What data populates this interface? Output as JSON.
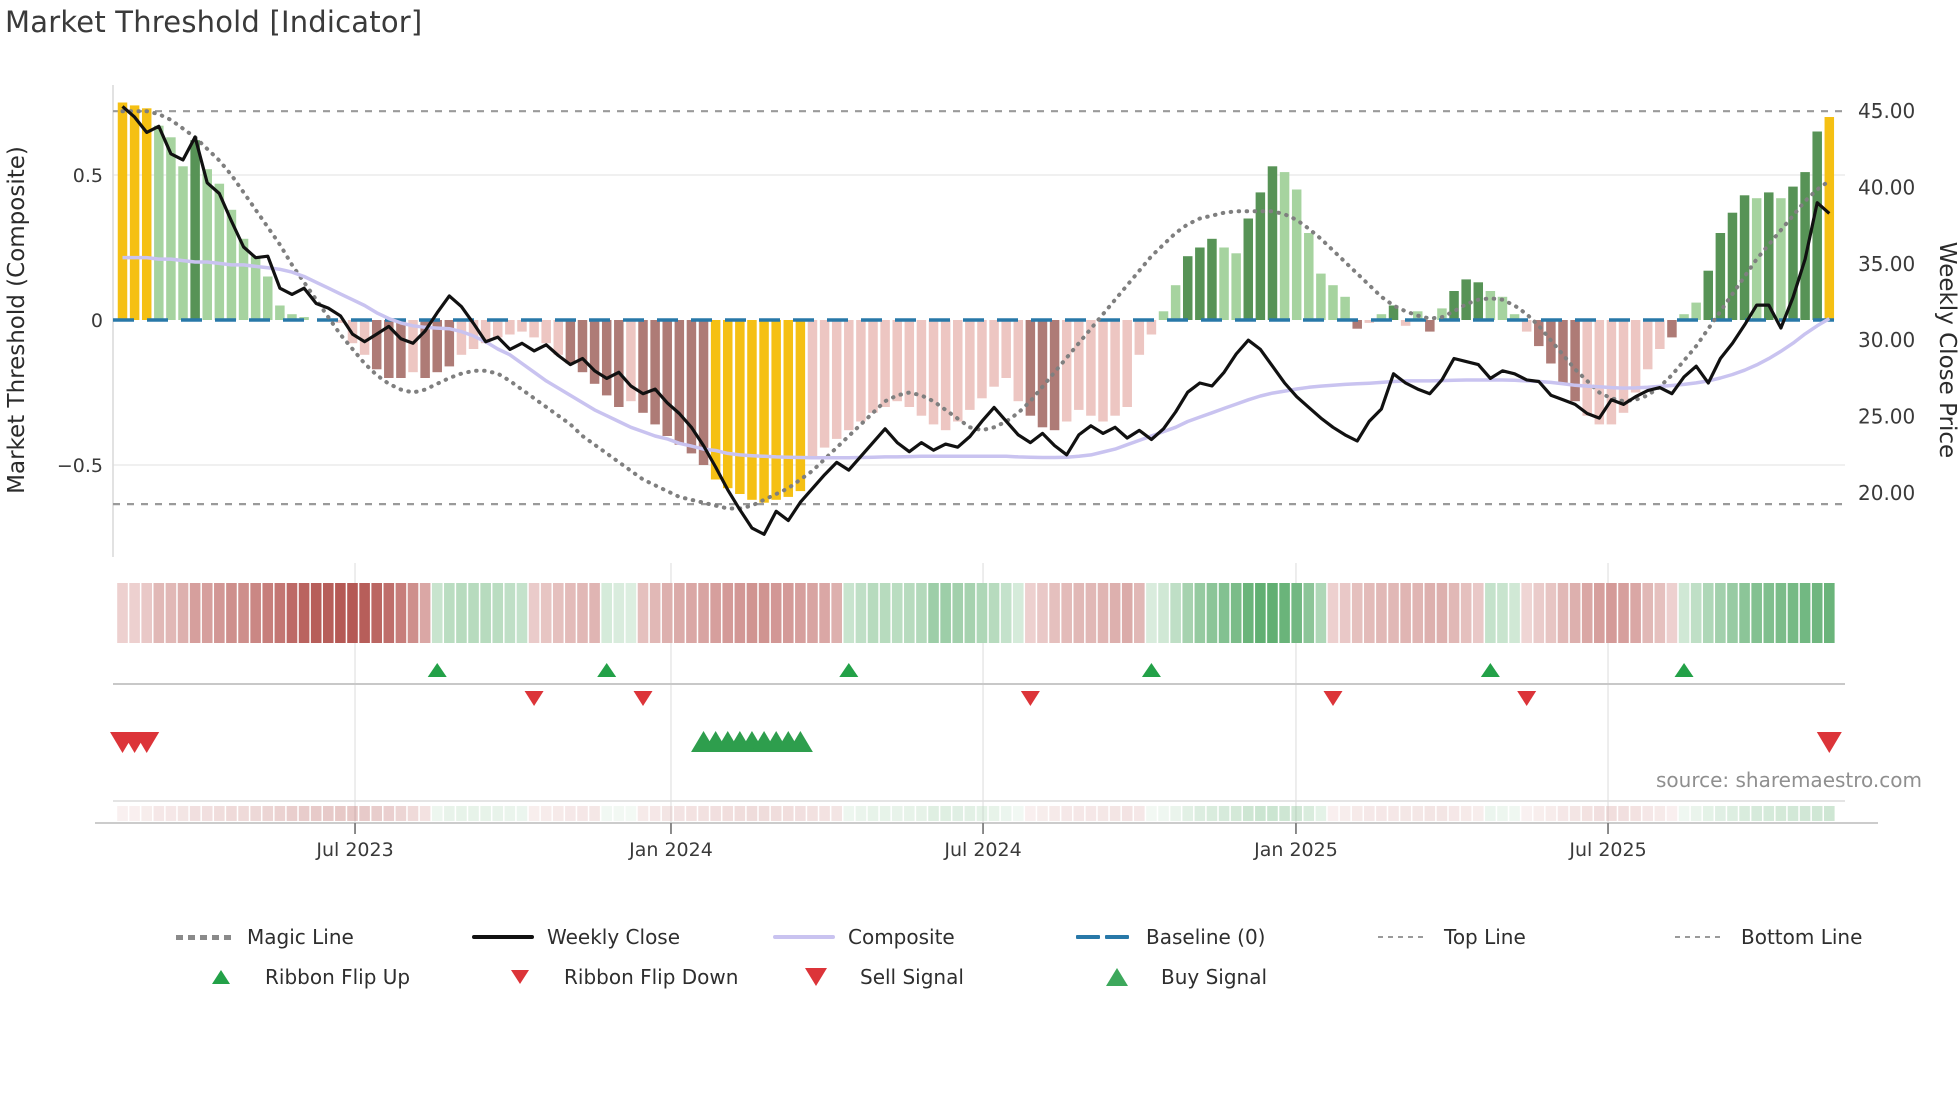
{
  "title": "Market Threshold [Indicator]",
  "source": {
    "text": "source: sharemaestro.com"
  },
  "axes": {
    "left_title": "Market Threshold (Composite)",
    "right_title": "Weekly Close Price",
    "left_ticks": [
      {
        "label": "0.5",
        "value": 0.5
      },
      {
        "label": "0",
        "value": 0
      },
      {
        "label": "−0.5",
        "value": -0.5
      }
    ],
    "right_ticks": [
      {
        "label": "45.00",
        "value": 45
      },
      {
        "label": "40.00",
        "value": 40
      },
      {
        "label": "35.00",
        "value": 35
      },
      {
        "label": "30.00",
        "value": 30
      },
      {
        "label": "25.00",
        "value": 25
      },
      {
        "label": "20.00",
        "value": 20
      }
    ],
    "x_ticks": [
      {
        "label": "Jul 2023",
        "week": 19.21
      },
      {
        "label": "Jan 2024",
        "week": 45.31
      },
      {
        "label": "Jul 2024",
        "week": 71.09
      },
      {
        "label": "Jan 2025",
        "week": 96.94
      },
      {
        "label": "Jul 2025",
        "week": 122.72
      }
    ]
  },
  "chart_data": {
    "type": "bar",
    "title": "Market Threshold [Indicator]",
    "xlabel": "",
    "ylabel_left": "Market Threshold (Composite)",
    "ylabel_right": "Weekly Close Price",
    "ylim_left": [
      -0.78,
      0.82
    ],
    "ylim_right": [
      16.5,
      46.5
    ],
    "x_range_weeks": 142,
    "grid": "horizontal at 0.5, 0, -0.5; faint verticals at half-year ticks",
    "reference_lines": {
      "baseline": 0,
      "top_line": 0.72,
      "bottom_line": -0.635
    },
    "bar_values": [
      0.75,
      0.74,
      0.73,
      0.67,
      0.63,
      0.53,
      0.62,
      0.52,
      0.47,
      0.38,
      0.28,
      0.22,
      0.15,
      0.05,
      0.02,
      0.01,
      0,
      0,
      -0.01,
      -0.08,
      -0.12,
      -0.17,
      -0.2,
      -0.2,
      -0.18,
      -0.2,
      -0.18,
      -0.16,
      -0.12,
      -0.1,
      -0.08,
      -0.06,
      -0.05,
      -0.04,
      -0.06,
      -0.08,
      -0.12,
      -0.15,
      -0.18,
      -0.22,
      -0.26,
      -0.3,
      -0.28,
      -0.32,
      -0.36,
      -0.4,
      -0.43,
      -0.46,
      -0.5,
      -0.55,
      -0.58,
      -0.6,
      -0.62,
      -0.63,
      -0.62,
      -0.61,
      -0.59,
      -0.48,
      -0.44,
      -0.41,
      -0.38,
      -0.35,
      -0.32,
      -0.3,
      -0.28,
      -0.3,
      -0.33,
      -0.36,
      -0.38,
      -0.35,
      -0.31,
      -0.27,
      -0.23,
      -0.2,
      -0.28,
      -0.33,
      -0.37,
      -0.38,
      -0.35,
      -0.31,
      -0.33,
      -0.35,
      -0.33,
      -0.3,
      -0.12,
      -0.05,
      0.03,
      0.12,
      0.22,
      0.25,
      0.28,
      0.25,
      0.23,
      0.35,
      0.44,
      0.53,
      0.51,
      0.45,
      0.3,
      0.16,
      0.12,
      0.08,
      -0.03,
      -0.01,
      0.02,
      0.05,
      -0.02,
      0.03,
      -0.04,
      0.04,
      0.1,
      0.14,
      0.13,
      0.1,
      0.08,
      0.02,
      -0.04,
      -0.09,
      -0.15,
      -0.22,
      -0.28,
      -0.33,
      -0.36,
      -0.36,
      -0.32,
      -0.25,
      -0.17,
      -0.1,
      -0.06,
      0.02,
      0.06,
      0.17,
      0.3,
      0.37,
      0.43,
      0.42,
      0.44,
      0.42,
      0.46,
      0.51,
      0.65,
      0.7
    ],
    "bar_colors": [
      "Y",
      "Y",
      "Y",
      "G",
      "G",
      "G",
      "D",
      "G",
      "G",
      "G",
      "G",
      "G",
      "G",
      "G",
      "G",
      "G",
      "G",
      "G",
      "P",
      "P",
      "P",
      "R",
      "R",
      "R",
      "P",
      "R",
      "R",
      "R",
      "P",
      "P",
      "P",
      "P",
      "P",
      "P",
      "P",
      "P",
      "P",
      "R",
      "R",
      "R",
      "R",
      "R",
      "P",
      "R",
      "R",
      "R",
      "R",
      "R",
      "R",
      "Y",
      "Y",
      "Y",
      "Y",
      "Y",
      "Y",
      "Y",
      "Y",
      "P",
      "P",
      "P",
      "P",
      "P",
      "P",
      "P",
      "P",
      "P",
      "P",
      "P",
      "P",
      "P",
      "P",
      "P",
      "P",
      "P",
      "P",
      "R",
      "R",
      "R",
      "P",
      "P",
      "P",
      "P",
      "P",
      "P",
      "P",
      "P",
      "G",
      "G",
      "D",
      "D",
      "D",
      "G",
      "G",
      "D",
      "D",
      "D",
      "G",
      "G",
      "G",
      "G",
      "G",
      "G",
      "R",
      "P",
      "G",
      "D",
      "P",
      "G",
      "R",
      "G",
      "D",
      "D",
      "D",
      "G",
      "G",
      "G",
      "P",
      "R",
      "R",
      "R",
      "R",
      "P",
      "P",
      "P",
      "P",
      "P",
      "P",
      "P",
      "R",
      "G",
      "G",
      "D",
      "D",
      "D",
      "D",
      "G",
      "D",
      "G",
      "D",
      "D",
      "D",
      "Y"
    ],
    "weekly_close": [
      45.3,
      44.6,
      43.6,
      44.0,
      42.2,
      41.8,
      43.3,
      40.3,
      39.6,
      37.8,
      36.1,
      35.4,
      35.5,
      33.4,
      33.0,
      33.4,
      32.4,
      32.1,
      31.6,
      30.4,
      29.9,
      30.4,
      30.9,
      30.1,
      29.8,
      30.6,
      31.8,
      32.9,
      32.2,
      31.1,
      29.9,
      30.2,
      29.4,
      29.8,
      29.3,
      29.7,
      29.0,
      28.4,
      28.8,
      28.0,
      27.5,
      27.9,
      27.0,
      26.5,
      26.8,
      25.9,
      25.2,
      24.3,
      23.1,
      21.7,
      20.2,
      18.9,
      17.7,
      17.3,
      18.8,
      18.2,
      19.4,
      20.3,
      21.2,
      22.0,
      21.5,
      22.4,
      23.3,
      24.2,
      23.3,
      22.7,
      23.3,
      22.8,
      23.2,
      23.0,
      23.7,
      24.7,
      25.6,
      24.7,
      23.8,
      23.3,
      23.9,
      23.1,
      22.5,
      23.8,
      24.4,
      23.9,
      24.3,
      23.6,
      24.1,
      23.5,
      24.2,
      25.3,
      26.6,
      27.2,
      27.0,
      27.9,
      29.1,
      30.0,
      29.4,
      28.3,
      27.2,
      26.3,
      25.6,
      24.9,
      24.3,
      23.8,
      23.4,
      24.7,
      25.5,
      27.8,
      27.2,
      26.8,
      26.5,
      27.4,
      28.8,
      28.6,
      28.4,
      27.5,
      28.0,
      27.8,
      27.4,
      27.3,
      26.4,
      26.1,
      25.8,
      25.2,
      24.9,
      26.1,
      25.8,
      26.3,
      26.7,
      26.9,
      26.5,
      27.6,
      28.3,
      27.2,
      28.8,
      29.8,
      31.0,
      32.3,
      32.3,
      30.8,
      32.8,
      35.3,
      39.0,
      38.3
    ],
    "composite_line": [
      0.215,
      0.215,
      0.215,
      0.21,
      0.21,
      0.205,
      0.2,
      0.2,
      0.195,
      0.19,
      0.19,
      0.185,
      0.18,
      0.175,
      0.165,
      0.15,
      0.13,
      0.11,
      0.09,
      0.07,
      0.05,
      0.025,
      0.005,
      -0.01,
      -0.02,
      -0.025,
      -0.028,
      -0.03,
      -0.04,
      -0.055,
      -0.075,
      -0.1,
      -0.12,
      -0.15,
      -0.18,
      -0.21,
      -0.235,
      -0.26,
      -0.285,
      -0.31,
      -0.33,
      -0.35,
      -0.37,
      -0.385,
      -0.4,
      -0.41,
      -0.425,
      -0.435,
      -0.445,
      -0.45,
      -0.46,
      -0.465,
      -0.468,
      -0.47,
      -0.472,
      -0.473,
      -0.474,
      -0.475,
      -0.475,
      -0.475,
      -0.475,
      -0.474,
      -0.473,
      -0.472,
      -0.472,
      -0.471,
      -0.47,
      -0.47,
      -0.47,
      -0.47,
      -0.47,
      -0.47,
      -0.47,
      -0.47,
      -0.472,
      -0.473,
      -0.474,
      -0.474,
      -0.473,
      -0.47,
      -0.465,
      -0.455,
      -0.445,
      -0.43,
      -0.415,
      -0.4,
      -0.385,
      -0.37,
      -0.35,
      -0.335,
      -0.32,
      -0.305,
      -0.29,
      -0.275,
      -0.262,
      -0.252,
      -0.245,
      -0.238,
      -0.232,
      -0.228,
      -0.225,
      -0.222,
      -0.22,
      -0.218,
      -0.215,
      -0.212,
      -0.21,
      -0.21,
      -0.21,
      -0.209,
      -0.208,
      -0.207,
      -0.207,
      -0.207,
      -0.207,
      -0.208,
      -0.21,
      -0.212,
      -0.215,
      -0.22,
      -0.225,
      -0.228,
      -0.23,
      -0.233,
      -0.235,
      -0.234,
      -0.232,
      -0.229,
      -0.226,
      -0.222,
      -0.217,
      -0.21,
      -0.2,
      -0.188,
      -0.173,
      -0.155,
      -0.133,
      -0.108,
      -0.08,
      -0.048,
      -0.02,
      0.005
    ],
    "magic_line": [
      0.72,
      0.72,
      0.72,
      0.71,
      0.69,
      0.66,
      0.63,
      0.59,
      0.55,
      0.5,
      0.44,
      0.38,
      0.32,
      0.26,
      0.19,
      0.13,
      0.07,
      0.01,
      -0.05,
      -0.1,
      -0.15,
      -0.19,
      -0.22,
      -0.24,
      -0.25,
      -0.24,
      -0.22,
      -0.2,
      -0.185,
      -0.175,
      -0.175,
      -0.185,
      -0.21,
      -0.24,
      -0.27,
      -0.3,
      -0.33,
      -0.36,
      -0.4,
      -0.43,
      -0.46,
      -0.49,
      -0.52,
      -0.55,
      -0.57,
      -0.59,
      -0.61,
      -0.62,
      -0.63,
      -0.64,
      -0.65,
      -0.65,
      -0.64,
      -0.62,
      -0.6,
      -0.58,
      -0.55,
      -0.52,
      -0.48,
      -0.44,
      -0.4,
      -0.36,
      -0.32,
      -0.28,
      -0.26,
      -0.25,
      -0.26,
      -0.28,
      -0.31,
      -0.34,
      -0.37,
      -0.38,
      -0.37,
      -0.35,
      -0.32,
      -0.28,
      -0.23,
      -0.18,
      -0.13,
      -0.08,
      -0.03,
      0.02,
      0.07,
      0.12,
      0.17,
      0.22,
      0.26,
      0.3,
      0.33,
      0.35,
      0.36,
      0.37,
      0.375,
      0.375,
      0.375,
      0.375,
      0.365,
      0.345,
      0.315,
      0.28,
      0.24,
      0.2,
      0.16,
      0.12,
      0.08,
      0.05,
      0.03,
      0.015,
      0.005,
      0.01,
      0.03,
      0.055,
      0.07,
      0.075,
      0.07,
      0.05,
      0.02,
      -0.02,
      -0.07,
      -0.12,
      -0.17,
      -0.21,
      -0.25,
      -0.27,
      -0.28,
      -0.275,
      -0.26,
      -0.23,
      -0.19,
      -0.14,
      -0.09,
      -0.03,
      0.03,
      0.09,
      0.15,
      0.21,
      0.26,
      0.31,
      0.36,
      0.41,
      0.45,
      0.48
    ],
    "ribbon": [
      -0.15,
      -0.15,
      -0.2,
      -0.3,
      -0.3,
      -0.35,
      -0.45,
      -0.45,
      -0.5,
      -0.55,
      -0.55,
      -0.6,
      -0.65,
      -0.7,
      -0.78,
      -0.82,
      -0.85,
      -0.85,
      -0.88,
      -0.88,
      -0.85,
      -0.8,
      -0.75,
      -0.65,
      -0.55,
      -0.4,
      0.2,
      0.28,
      0.3,
      0.3,
      0.3,
      0.28,
      0.25,
      0.22,
      -0.18,
      -0.22,
      -0.25,
      -0.28,
      -0.3,
      -0.32,
      0.12,
      0.1,
      0.08,
      -0.25,
      -0.3,
      -0.35,
      -0.38,
      -0.4,
      -0.42,
      -0.45,
      -0.48,
      -0.5,
      -0.52,
      -0.52,
      -0.5,
      -0.48,
      -0.45,
      -0.42,
      -0.4,
      -0.35,
      0.2,
      0.25,
      0.3,
      0.3,
      0.28,
      0.3,
      0.32,
      0.45,
      0.45,
      0.42,
      0.4,
      0.35,
      0.3,
      0.22,
      0.12,
      -0.15,
      -0.2,
      -0.25,
      -0.28,
      -0.3,
      -0.3,
      -0.32,
      -0.35,
      -0.38,
      -0.3,
      0.1,
      0.15,
      0.25,
      0.4,
      0.5,
      0.55,
      0.6,
      0.65,
      0.75,
      0.8,
      0.8,
      0.75,
      0.7,
      0.55,
      0.35,
      -0.15,
      -0.2,
      -0.25,
      -0.28,
      -0.3,
      -0.3,
      -0.32,
      -0.32,
      -0.35,
      -0.35,
      -0.3,
      -0.25,
      -0.2,
      0.22,
      0.2,
      0.15,
      -0.12,
      -0.18,
      -0.22,
      -0.3,
      -0.35,
      -0.4,
      -0.45,
      -0.48,
      -0.45,
      -0.4,
      -0.3,
      -0.25,
      -0.15,
      0.15,
      0.25,
      0.35,
      0.42,
      0.48,
      0.55,
      0.6,
      0.62,
      0.65,
      0.68,
      0.7,
      0.72,
      0.75
    ],
    "signals": {
      "ribbon_flip_up_weeks": [
        26,
        40,
        60,
        85,
        113,
        129
      ],
      "ribbon_flip_down_weeks": [
        34,
        43,
        75,
        100,
        116
      ],
      "buy_signal_weeks": [
        48,
        49,
        50,
        51,
        52,
        53,
        54,
        55,
        56
      ],
      "sell_signal_weeks": [
        0,
        1,
        2,
        141
      ]
    },
    "legend_position": "bottom",
    "colors": {
      "bar_yellow": "#F5C013",
      "bar_light_green": "#A6D39F",
      "bar_dark_green": "#579356",
      "bar_light_pink": "#EDC6C2",
      "bar_dark_red": "#AE7B76",
      "weekly_close": "#111111",
      "composite": "#C9C3F0",
      "magic": "#7f7f7f",
      "baseline": "#2878A8",
      "top_bottom": "#9A9A9A",
      "ribbon_neg_dark": "#AC4541",
      "ribbon_neg_light": "#F8E9E8",
      "ribbon_pos_dark": "#3F9E54",
      "ribbon_pos_light": "#EAF5EC",
      "signal_green": "#23A148",
      "signal_red": "#DC3439"
    }
  },
  "legend": {
    "row1": [
      {
        "label": "Magic Line",
        "marker": "dots-gray"
      },
      {
        "label": "Weekly Close",
        "marker": "line-black"
      },
      {
        "label": "Composite",
        "marker": "line-purple"
      },
      {
        "label": "Baseline (0)",
        "marker": "dash-blue"
      },
      {
        "label": "Top Line",
        "marker": "dots-small"
      },
      {
        "label": "Bottom Line",
        "marker": "dots-small"
      }
    ],
    "row2": [
      {
        "label": "Ribbon Flip Up",
        "marker": "tri-up"
      },
      {
        "label": "Ribbon Flip Down",
        "marker": "tri-down"
      },
      {
        "label": "Sell Signal",
        "marker": "tri-down-big"
      },
      {
        "label": "Buy Signal",
        "marker": "tri-up-big"
      }
    ]
  }
}
